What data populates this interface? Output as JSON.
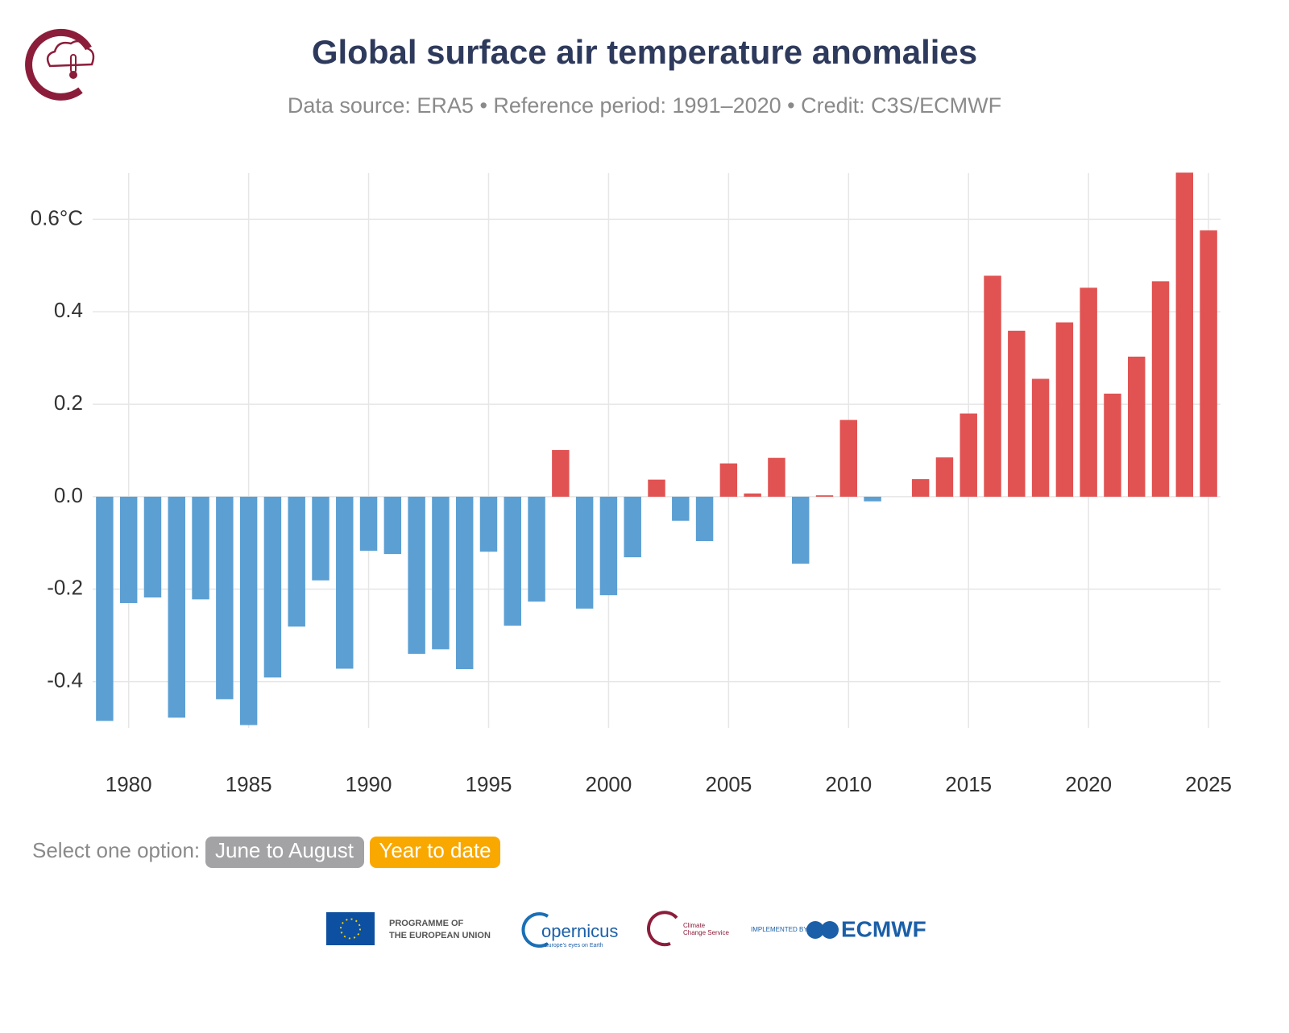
{
  "chart_data": {
    "type": "bar",
    "title": "Global surface air temperature anomalies",
    "subtitle": "Data source: ERA5 • Reference period: 1991–2020 • Credit: C3S/ECMWF",
    "x": [
      1979,
      1980,
      1981,
      1982,
      1983,
      1984,
      1985,
      1986,
      1987,
      1988,
      1989,
      1990,
      1991,
      1992,
      1993,
      1994,
      1995,
      1996,
      1997,
      1998,
      1999,
      2000,
      2001,
      2002,
      2003,
      2004,
      2005,
      2006,
      2007,
      2008,
      2009,
      2010,
      2011,
      2012,
      2013,
      2014,
      2015,
      2016,
      2017,
      2018,
      2019,
      2020,
      2021,
      2022,
      2023,
      2024,
      2025
    ],
    "values": [
      -0.485,
      -0.23,
      -0.218,
      -0.478,
      -0.222,
      -0.438,
      -0.494,
      -0.391,
      -0.281,
      -0.181,
      -0.372,
      -0.117,
      -0.124,
      -0.34,
      -0.33,
      -0.373,
      -0.119,
      -0.279,
      -0.227,
      0.101,
      -0.242,
      -0.213,
      -0.131,
      0.037,
      -0.052,
      -0.096,
      0.072,
      0.007,
      0.084,
      -0.145,
      0.003,
      0.166,
      -0.01,
      0,
      0.038,
      0.085,
      0.18,
      0.478,
      0.359,
      0.255,
      0.377,
      0.452,
      0.223,
      0.303,
      0.466,
      0.701,
      0.576
    ],
    "colors": {
      "positive": "#e15252",
      "negative": "#5b9fd3"
    },
    "xlim": [
      1978.5,
      2025.5
    ],
    "xticks": [
      1980,
      1985,
      1990,
      1995,
      2000,
      2005,
      2010,
      2015,
      2020,
      2025
    ],
    "ylim": [
      -0.5,
      0.7
    ],
    "yticks": [
      {
        "value": 0.6,
        "label": "0.6°C"
      },
      0.4,
      0.2,
      {
        "value": 0,
        "label": "0.0"
      },
      -0.2,
      -0.4
    ],
    "grid": true
  },
  "controls": {
    "prompt": "Select one option:",
    "options": [
      "June to August",
      "Year to date"
    ]
  },
  "footer": {
    "eu": [
      "PROGRAMME OF",
      "THE EUROPEAN UNION"
    ],
    "copernicus": "opernicus",
    "copernicus_tagline": "Europe's eyes on Earth",
    "c3s": [
      "Climate",
      "Change Service"
    ],
    "implemented": "IMPLEMENTED BY",
    "ecmwf": "ECMWF"
  }
}
